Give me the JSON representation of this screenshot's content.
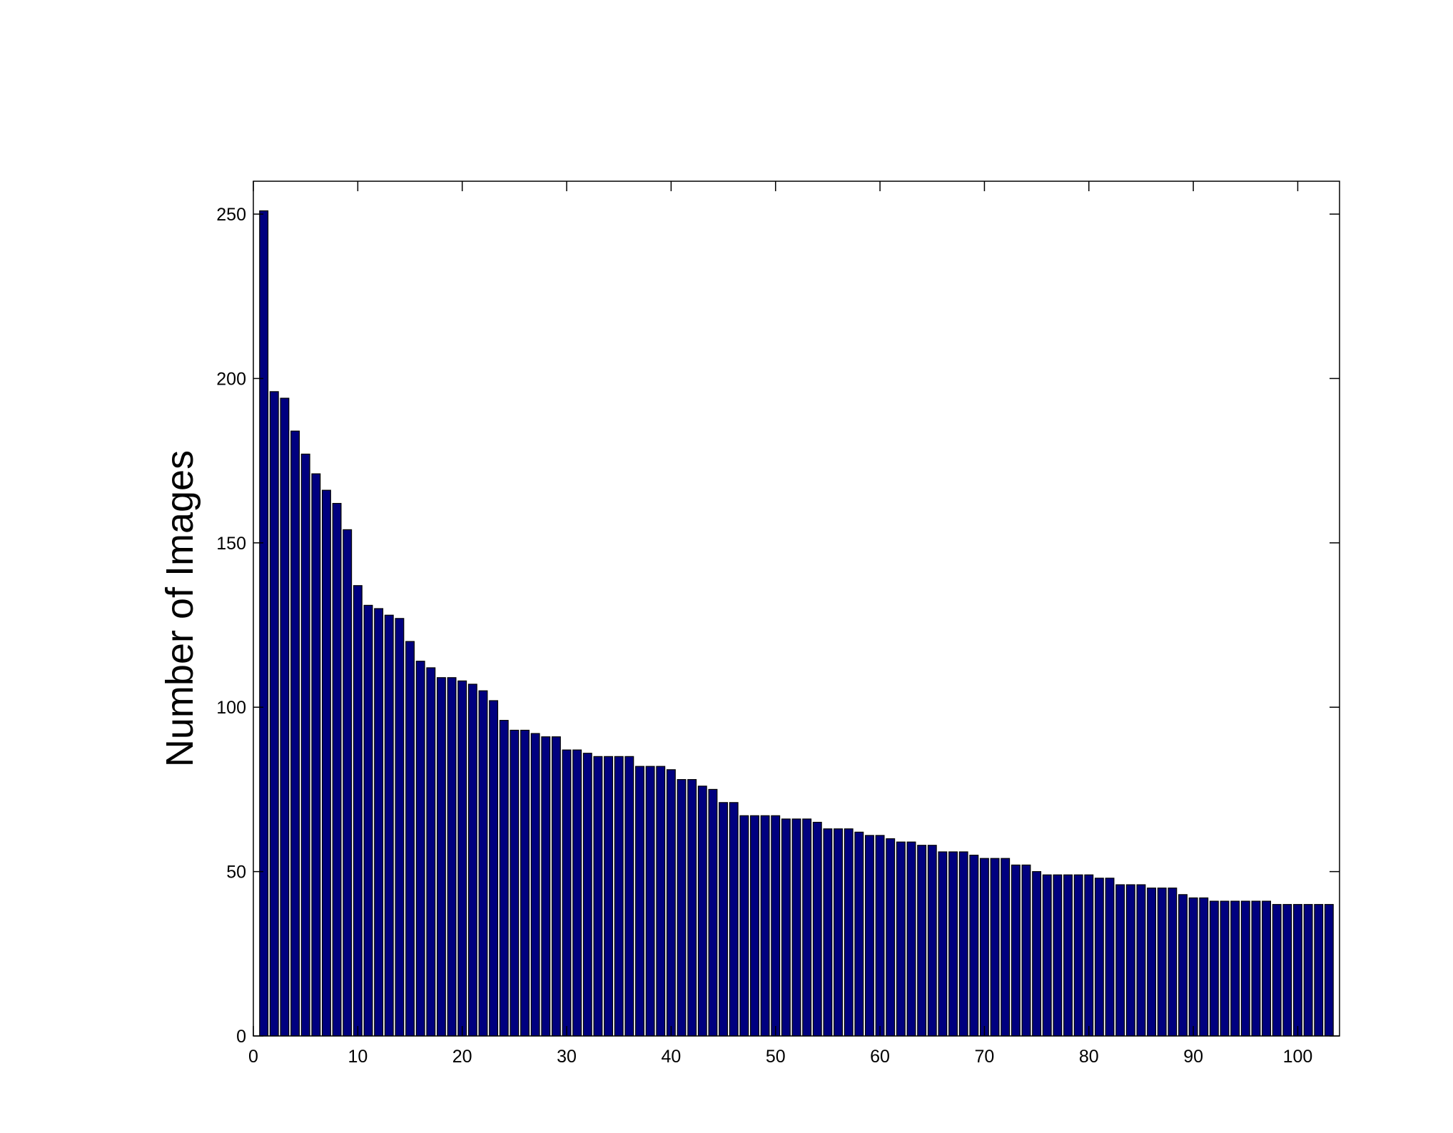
{
  "chart_data": {
    "type": "bar",
    "title": "",
    "xlabel": "",
    "ylabel": "Number of Images",
    "xlim": [
      0,
      104
    ],
    "ylim": [
      0,
      260
    ],
    "xticks": [
      0,
      10,
      20,
      30,
      40,
      50,
      60,
      70,
      80,
      90,
      100
    ],
    "yticks": [
      0,
      50,
      100,
      150,
      200,
      250
    ],
    "grid": false,
    "legend": "none",
    "x": [
      1,
      2,
      3,
      4,
      5,
      6,
      7,
      8,
      9,
      10,
      11,
      12,
      13,
      14,
      15,
      16,
      17,
      18,
      19,
      20,
      21,
      22,
      23,
      24,
      25,
      26,
      27,
      28,
      29,
      30,
      31,
      32,
      33,
      34,
      35,
      36,
      37,
      38,
      39,
      40,
      41,
      42,
      43,
      44,
      45,
      46,
      47,
      48,
      49,
      50,
      51,
      52,
      53,
      54,
      55,
      56,
      57,
      58,
      59,
      60,
      61,
      62,
      63,
      64,
      65,
      66,
      67,
      68,
      69,
      70,
      71,
      72,
      73,
      74,
      75,
      76,
      77,
      78,
      79,
      80,
      81,
      82,
      83,
      84,
      85,
      86,
      87,
      88,
      89,
      90,
      91,
      92,
      93,
      94,
      95,
      96,
      97,
      98,
      99,
      100,
      101,
      102,
      103
    ],
    "values": [
      251,
      196,
      194,
      184,
      177,
      171,
      166,
      162,
      154,
      137,
      131,
      130,
      128,
      127,
      120,
      114,
      112,
      109,
      109,
      108,
      107,
      105,
      102,
      96,
      93,
      93,
      92,
      91,
      91,
      87,
      87,
      86,
      85,
      85,
      85,
      85,
      82,
      82,
      82,
      81,
      78,
      78,
      76,
      75,
      71,
      71,
      67,
      67,
      67,
      67,
      66,
      66,
      66,
      65,
      63,
      63,
      63,
      62,
      61,
      61,
      60,
      59,
      59,
      58,
      58,
      56,
      56,
      56,
      55,
      54,
      54,
      54,
      52,
      52,
      50,
      49,
      49,
      49,
      49,
      49,
      48,
      48,
      46,
      46,
      46,
      45,
      45,
      45,
      43,
      42,
      42,
      41,
      41,
      41,
      41,
      41,
      41,
      40,
      40,
      40,
      40,
      40,
      40
    ],
    "colors": {
      "bar_fill": "#00007f",
      "bar_edge": "#000000",
      "axes": "#000000",
      "background": "#ffffff"
    }
  }
}
